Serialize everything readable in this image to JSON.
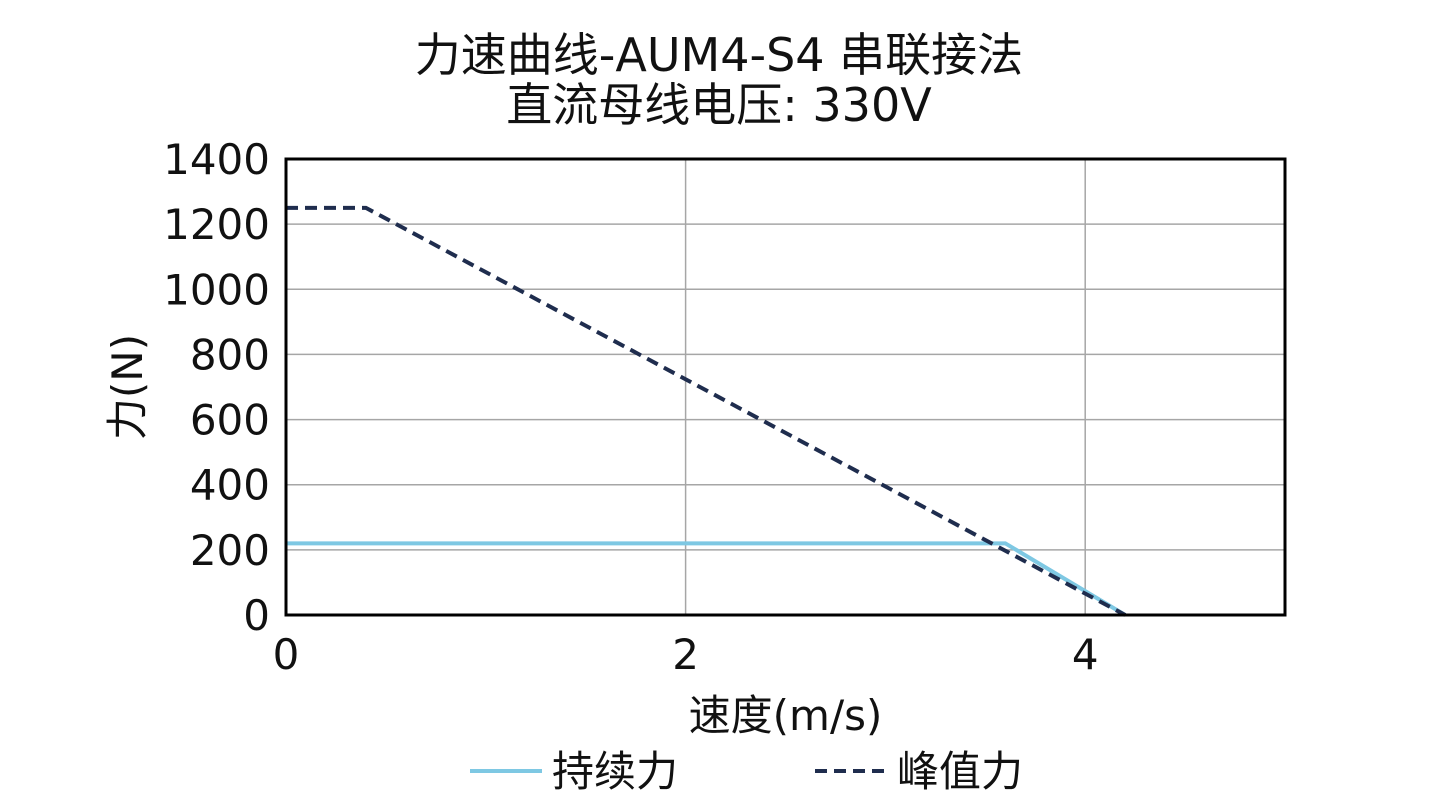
{
  "chart_data": {
    "type": "line",
    "title": "力速曲线-AUM4-S4 串联接法",
    "subtitle": "直流母线电压: 330V",
    "xlabel": "速度(m/s)",
    "ylabel": "力(N)",
    "xlim": [
      0,
      5
    ],
    "ylim": [
      0,
      1400
    ],
    "xticks": [
      0,
      2,
      4
    ],
    "yticks": [
      0,
      200,
      400,
      600,
      800,
      1000,
      1200,
      1400
    ],
    "grid": true,
    "legend_position": "bottom",
    "series": [
      {
        "name": "持续力",
        "color": "#7ec8e3",
        "style": "solid",
        "x": [
          0,
          3.6,
          4.2
        ],
        "y": [
          220,
          220,
          0
        ]
      },
      {
        "name": "峰值力",
        "color": "#1f2d4e",
        "style": "dashed",
        "x": [
          0,
          0.4,
          4.2
        ],
        "y": [
          1250,
          1250,
          0
        ]
      }
    ]
  }
}
